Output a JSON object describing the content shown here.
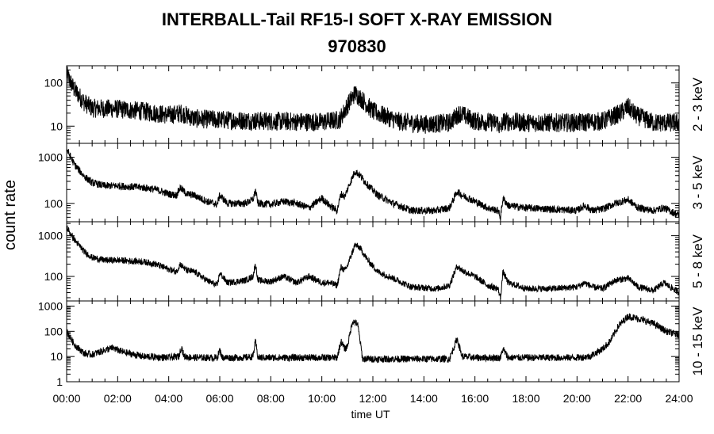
{
  "title": "INTERBALL-Tail RF15-I SOFT X-RAY EMISSION",
  "subtitle": "970830",
  "ylabel": "count rate",
  "xlabel": "time UT",
  "chart_data": {
    "type": "line",
    "title": "INTERBALL-Tail RF15-I SOFT X-RAY EMISSION",
    "subtitle": "970830",
    "xlabel": "time UT",
    "ylabel": "count rate",
    "x_ticks": [
      "00:00",
      "02:00",
      "04:00",
      "06:00",
      "08:00",
      "10:00",
      "12:00",
      "14:00",
      "16:00",
      "18:00",
      "20:00",
      "22:00",
      "24:00"
    ],
    "xlim_hours": [
      0,
      24
    ],
    "grid": false,
    "panels": [
      {
        "name": "2 - 3 keV",
        "yscale": "log",
        "ylim": [
          4,
          250
        ],
        "y_ticks": [
          10,
          100
        ],
        "y_tick_labels": [
          "10",
          "100"
        ],
        "noise": 0.22,
        "anchors": [
          [
            0,
            160
          ],
          [
            0.3,
            70
          ],
          [
            0.7,
            35
          ],
          [
            1,
            26
          ],
          [
            2,
            25
          ],
          [
            3,
            22
          ],
          [
            4,
            18
          ],
          [
            4.5,
            20
          ],
          [
            5,
            15
          ],
          [
            6,
            14
          ],
          [
            8,
            13
          ],
          [
            10,
            12.5
          ],
          [
            10.7,
            14
          ],
          [
            11,
            30
          ],
          [
            11.3,
            58
          ],
          [
            11.6,
            40
          ],
          [
            12,
            22
          ],
          [
            13,
            13
          ],
          [
            14,
            11
          ],
          [
            15,
            12
          ],
          [
            15.4,
            20
          ],
          [
            16,
            13
          ],
          [
            16.9,
            12
          ],
          [
            17,
            8
          ],
          [
            17.1,
            13
          ],
          [
            18,
            12
          ],
          [
            20,
            12
          ],
          [
            21,
            13
          ],
          [
            21.7,
            20
          ],
          [
            22,
            28
          ],
          [
            22.3,
            18
          ],
          [
            23,
            12
          ],
          [
            24,
            12
          ]
        ]
      },
      {
        "name": "3 - 5 keV",
        "yscale": "log",
        "ylim": [
          40,
          2000
        ],
        "y_ticks": [
          100,
          1000
        ],
        "y_tick_labels": [
          "100",
          "1000"
        ],
        "noise": 0.08,
        "anchors": [
          [
            0,
            1500
          ],
          [
            0.3,
            700
          ],
          [
            0.7,
            380
          ],
          [
            1,
            280
          ],
          [
            1.5,
            240
          ],
          [
            2,
            240
          ],
          [
            3,
            220
          ],
          [
            3.5,
            200
          ],
          [
            4,
            160
          ],
          [
            4.3,
            150
          ],
          [
            4.45,
            220
          ],
          [
            4.7,
            160
          ],
          [
            5,
            150
          ],
          [
            5.5,
            110
          ],
          [
            5.9,
            95
          ],
          [
            6,
            150
          ],
          [
            6.3,
            100
          ],
          [
            7,
            100
          ],
          [
            7.3,
            120
          ],
          [
            7.4,
            190
          ],
          [
            7.5,
            100
          ],
          [
            8,
            95
          ],
          [
            8.5,
            110
          ],
          [
            9,
            100
          ],
          [
            9.5,
            80
          ],
          [
            10,
            130
          ],
          [
            10.3,
            90
          ],
          [
            10.6,
            70
          ],
          [
            10.75,
            160
          ],
          [
            10.9,
            140
          ],
          [
            11,
            200
          ],
          [
            11.3,
            500
          ],
          [
            11.5,
            400
          ],
          [
            11.8,
            250
          ],
          [
            12.2,
            150
          ],
          [
            12.8,
            100
          ],
          [
            13.5,
            70
          ],
          [
            14.5,
            70
          ],
          [
            15,
            80
          ],
          [
            15.3,
            180
          ],
          [
            15.5,
            150
          ],
          [
            16,
            110
          ],
          [
            16.5,
            80
          ],
          [
            16.9,
            70
          ],
          [
            17,
            50
          ],
          [
            17.1,
            130
          ],
          [
            17.3,
            90
          ],
          [
            18,
            80
          ],
          [
            19,
            75
          ],
          [
            20,
            70
          ],
          [
            20.3,
            90
          ],
          [
            20.6,
            70
          ],
          [
            21,
            75
          ],
          [
            21.5,
            100
          ],
          [
            22,
            120
          ],
          [
            22.4,
            80
          ],
          [
            23,
            70
          ],
          [
            23.4,
            80
          ],
          [
            24,
            55
          ]
        ]
      },
      {
        "name": "5 - 8 keV",
        "yscale": "log",
        "ylim": [
          25,
          2200
        ],
        "y_ticks": [
          100,
          1000
        ],
        "y_tick_labels": [
          "100",
          "1000"
        ],
        "noise": 0.08,
        "anchors": [
          [
            0,
            1600
          ],
          [
            0.3,
            800
          ],
          [
            0.7,
            400
          ],
          [
            1,
            290
          ],
          [
            1.5,
            250
          ],
          [
            2,
            250
          ],
          [
            3,
            230
          ],
          [
            3.5,
            200
          ],
          [
            4,
            150
          ],
          [
            4.3,
            130
          ],
          [
            4.45,
            200
          ],
          [
            4.7,
            140
          ],
          [
            5,
            130
          ],
          [
            5.5,
            80
          ],
          [
            5.9,
            60
          ],
          [
            6,
            120
          ],
          [
            6.3,
            70
          ],
          [
            7,
            80
          ],
          [
            7.3,
            100
          ],
          [
            7.4,
            200
          ],
          [
            7.5,
            80
          ],
          [
            8,
            75
          ],
          [
            8.5,
            100
          ],
          [
            9,
            70
          ],
          [
            9.5,
            100
          ],
          [
            10,
            70
          ],
          [
            10.3,
            70
          ],
          [
            10.6,
            60
          ],
          [
            10.75,
            170
          ],
          [
            10.9,
            140
          ],
          [
            11,
            180
          ],
          [
            11.3,
            600
          ],
          [
            11.5,
            500
          ],
          [
            11.8,
            250
          ],
          [
            12.2,
            130
          ],
          [
            12.8,
            90
          ],
          [
            13.5,
            55
          ],
          [
            14.5,
            50
          ],
          [
            15,
            60
          ],
          [
            15.3,
            180
          ],
          [
            15.5,
            140
          ],
          [
            16,
            100
          ],
          [
            16.5,
            60
          ],
          [
            16.9,
            50
          ],
          [
            17,
            30
          ],
          [
            17.1,
            130
          ],
          [
            17.3,
            70
          ],
          [
            18,
            50
          ],
          [
            19,
            50
          ],
          [
            20,
            55
          ],
          [
            20.3,
            70
          ],
          [
            20.6,
            55
          ],
          [
            21,
            50
          ],
          [
            21.5,
            80
          ],
          [
            22,
            90
          ],
          [
            22.4,
            55
          ],
          [
            23,
            45
          ],
          [
            23.4,
            70
          ],
          [
            24,
            40
          ]
        ]
      },
      {
        "name": "10 - 15 keV",
        "yscale": "log",
        "ylim": [
          1,
          1600
        ],
        "y_ticks": [
          1,
          10,
          100,
          1000
        ],
        "y_tick_labels": [
          "1",
          "10",
          "100",
          "1000"
        ],
        "noise": 0.14,
        "anchors": [
          [
            0,
            100
          ],
          [
            0.3,
            30
          ],
          [
            0.7,
            13
          ],
          [
            1,
            12
          ],
          [
            1.5,
            18
          ],
          [
            1.8,
            22
          ],
          [
            2.2,
            15
          ],
          [
            3,
            10
          ],
          [
            4,
            9
          ],
          [
            4.4,
            10
          ],
          [
            4.5,
            25
          ],
          [
            4.6,
            10
          ],
          [
            5,
            9
          ],
          [
            5.9,
            9
          ],
          [
            6,
            18
          ],
          [
            6.1,
            9
          ],
          [
            7,
            9
          ],
          [
            7.3,
            10
          ],
          [
            7.4,
            40
          ],
          [
            7.5,
            9
          ],
          [
            9,
            9
          ],
          [
            10,
            9
          ],
          [
            10.6,
            9
          ],
          [
            10.75,
            40
          ],
          [
            10.9,
            20
          ],
          [
            11,
            25
          ],
          [
            11.2,
            250
          ],
          [
            11.4,
            200
          ],
          [
            11.6,
            8
          ],
          [
            12,
            8
          ],
          [
            13,
            8
          ],
          [
            15,
            8
          ],
          [
            15.3,
            50
          ],
          [
            15.5,
            10
          ],
          [
            16,
            9
          ],
          [
            17,
            9
          ],
          [
            17.1,
            20
          ],
          [
            17.3,
            9
          ],
          [
            18,
            9
          ],
          [
            20,
            9
          ],
          [
            20.5,
            10
          ],
          [
            21,
            20
          ],
          [
            21.3,
            40
          ],
          [
            21.6,
            150
          ],
          [
            22,
            400
          ],
          [
            22.5,
            300
          ],
          [
            23,
            200
          ],
          [
            23.5,
            100
          ],
          [
            24,
            70
          ]
        ]
      }
    ]
  }
}
